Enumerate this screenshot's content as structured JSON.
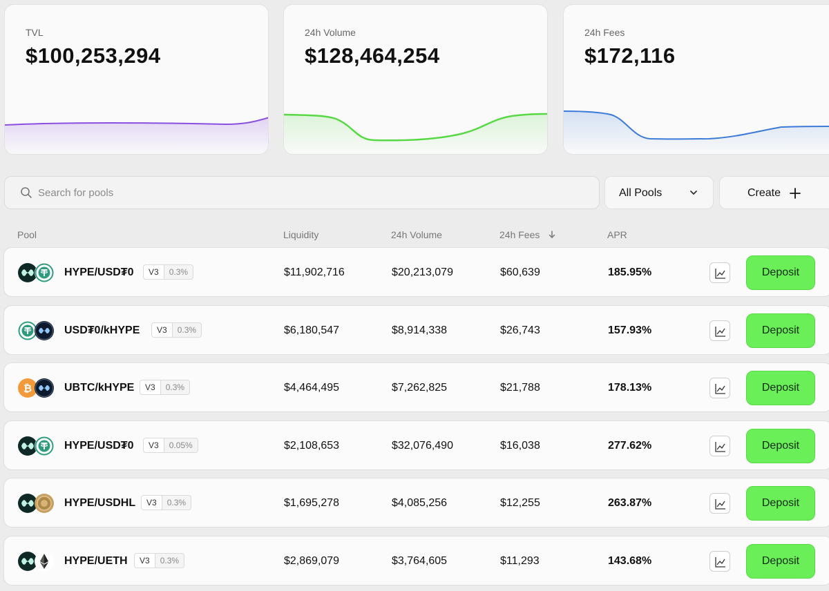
{
  "stats": [
    {
      "label": "TVL",
      "value": "$100,253,294",
      "color": "#8a4fe0"
    },
    {
      "label": "24h Volume",
      "value": "$128,464,254",
      "color": "#56d944"
    },
    {
      "label": "24h Fees",
      "value": "$172,116",
      "color": "#3c7ad8"
    }
  ],
  "search": {
    "placeholder": "Search for pools"
  },
  "filter": {
    "selected": "All Pools"
  },
  "create": {
    "label": "Create"
  },
  "table": {
    "headers": {
      "pool": "Pool",
      "liquidity": "Liquidity",
      "volume": "24h Volume",
      "fees": "24h Fees",
      "apr": "APR"
    },
    "rows": [
      {
        "name": "HYPE/USD₮0",
        "version": "V3",
        "fee": "0.3%",
        "liquidity": "$11,902,716",
        "volume": "$20,213,079",
        "fees": "$60,639",
        "apr": "185.95%",
        "token1": "hype-icon",
        "token2": "usdt0-icon"
      },
      {
        "name": "USD₮0/kHYPE",
        "version": "V3",
        "fee": "0.3%",
        "liquidity": "$6,180,547",
        "volume": "$8,914,338",
        "fees": "$26,743",
        "apr": "157.93%",
        "token1": "usdt0-icon",
        "token2": "khype-icon"
      },
      {
        "name": "UBTC/kHYPE",
        "version": "V3",
        "fee": "0.3%",
        "liquidity": "$4,464,495",
        "volume": "$7,262,825",
        "fees": "$21,788",
        "apr": "178.13%",
        "token1": "btc-icon",
        "token2": "khype-icon"
      },
      {
        "name": "HYPE/USD₮0",
        "version": "V3",
        "fee": "0.05%",
        "liquidity": "$2,108,653",
        "volume": "$32,076,490",
        "fees": "$16,038",
        "apr": "277.62%",
        "token1": "hype-icon",
        "token2": "usdt0-icon"
      },
      {
        "name": "HYPE/USDHL",
        "version": "V3",
        "fee": "0.3%",
        "liquidity": "$1,695,278",
        "volume": "$4,085,256",
        "fees": "$12,255",
        "apr": "263.87%",
        "token1": "hype-icon",
        "token2": "usdhl-icon"
      },
      {
        "name": "HYPE/UETH",
        "version": "V3",
        "fee": "0.3%",
        "liquidity": "$2,869,079",
        "volume": "$3,764,605",
        "fees": "$11,293",
        "apr": "143.68%",
        "token1": "hype-icon",
        "token2": "eth-icon"
      }
    ],
    "deposit_label": "Deposit"
  }
}
